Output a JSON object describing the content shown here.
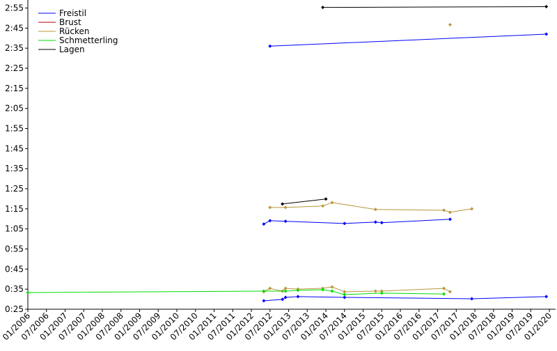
{
  "chart_data": {
    "type": "line",
    "ylim": [
      25,
      179
    ],
    "yticks": [
      {
        "value": 25,
        "label": "0:25"
      },
      {
        "value": 35,
        "label": "0:35"
      },
      {
        "value": 45,
        "label": "0:45"
      },
      {
        "value": 55,
        "label": "0:55"
      },
      {
        "value": 65,
        "label": "1:05"
      },
      {
        "value": 75,
        "label": "1:15"
      },
      {
        "value": 85,
        "label": "1:25"
      },
      {
        "value": 95,
        "label": "1:35"
      },
      {
        "value": 105,
        "label": "1:45"
      },
      {
        "value": 115,
        "label": "1:55"
      },
      {
        "value": 125,
        "label": "2:05"
      },
      {
        "value": 135,
        "label": "2:15"
      },
      {
        "value": 145,
        "label": "2:25"
      },
      {
        "value": 155,
        "label": "2:35"
      },
      {
        "value": 165,
        "label": "2:45"
      },
      {
        "value": 175,
        "label": "2:55"
      }
    ],
    "xlim": [
      "01/2006",
      "03/2020"
    ],
    "xticks": [
      "01/2006",
      "07/2006",
      "01/2007",
      "07/2007",
      "01/2008",
      "07/2008",
      "01/2009",
      "07/2009",
      "01/2010",
      "07/2010",
      "01/2011",
      "07/2011",
      "01/2012",
      "07/2012",
      "01/2013",
      "07/2013",
      "01/2014",
      "07/2014",
      "01/2015",
      "07/2015",
      "01/2016",
      "07/2016",
      "01/2017",
      "07/2017",
      "01/2018",
      "07/2018",
      "01/2019",
      "07/2019",
      "01/2020"
    ],
    "legend": "upper left",
    "series": [
      {
        "name": "Freistil",
        "color": "#0000ff",
        "x": [
          "05/2012",
          "07/2012",
          "12/2012",
          "07/2014",
          "05/2015",
          "07/2015",
          "05/2017",
          null,
          "05/2012",
          "11/2012",
          "12/2012",
          "04/2013",
          "07/2014",
          "12/2017",
          "12/2019",
          null,
          "07/2012",
          "12/2019"
        ],
        "values": [
          67.4,
          69.1,
          68.8,
          67.7,
          68.4,
          68.1,
          69.8,
          null,
          29.2,
          29.9,
          30.9,
          31.3,
          30.9,
          30.2,
          31.3,
          null,
          156,
          162
        ]
      },
      {
        "name": "Brust",
        "color": "#b00000",
        "x": [],
        "values": []
      },
      {
        "name": "Rücken",
        "color": "#b8963c",
        "x": [
          "07/2012",
          "12/2012",
          "12/2013",
          "03/2014",
          "05/2015",
          "03/2017",
          "05/2017",
          "12/2017",
          null,
          "05/2012",
          "07/2012",
          "11/2012",
          "12/2012",
          "04/2013",
          "12/2013",
          "03/2014",
          "07/2014",
          "05/2015",
          "07/2015",
          "03/2017",
          "05/2017",
          null,
          "05/2017"
        ],
        "values": [
          75.7,
          75.7,
          76.4,
          78.1,
          74.7,
          74.3,
          73.3,
          75,
          null,
          33.7,
          35.4,
          34,
          35.4,
          35,
          35.4,
          36.1,
          33.7,
          34,
          34,
          35.4,
          33.7,
          null,
          166.7
        ]
      },
      {
        "name": "Schmetterling",
        "color": "#00dd00",
        "x": [
          "01/2006",
          "05/2012",
          "12/2012",
          "04/2013",
          "12/2013",
          "03/2014",
          "07/2014",
          "07/2015",
          "03/2017"
        ],
        "values": [
          33.3,
          34,
          34,
          34.4,
          34.7,
          34,
          32.3,
          33,
          32.6
        ]
      },
      {
        "name": "Lagen",
        "color": "#000000",
        "x": [
          "11/2012",
          "01/2014",
          null,
          "12/2013",
          "12/2019"
        ],
        "values": [
          77.4,
          79.9,
          null,
          175.3,
          175.7
        ]
      }
    ]
  }
}
